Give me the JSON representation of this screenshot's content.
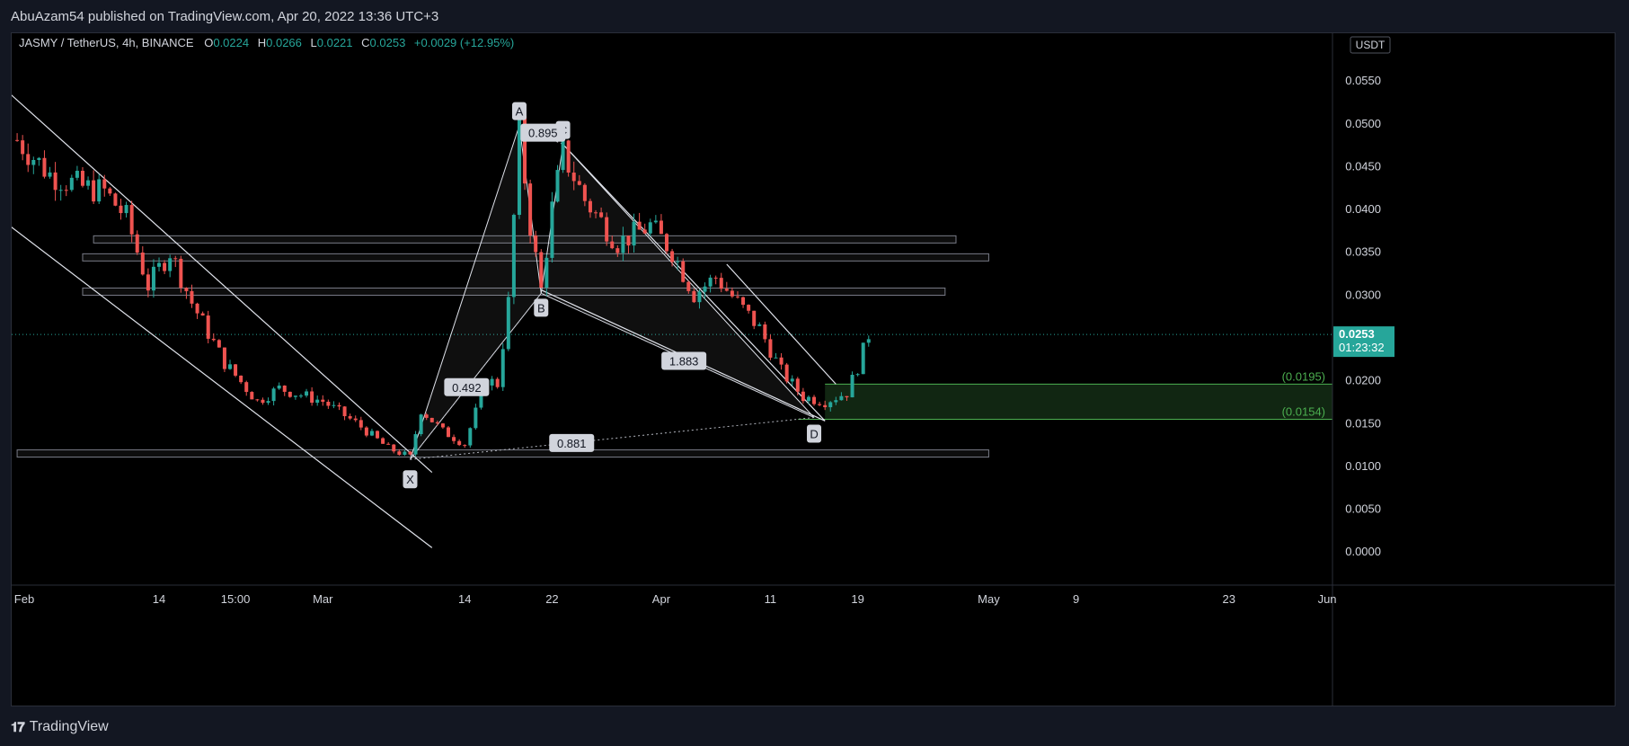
{
  "header": {
    "published": "AbuAzam54 published on TradingView.com, Apr 20, 2022 13:36 UTC+3"
  },
  "legend": {
    "symbol": "JASMY / TetherUS, 4h, BINANCE",
    "open_label": "O",
    "open": "0.0224",
    "high_label": "H",
    "high": "0.0266",
    "low_label": "L",
    "low": "0.0221",
    "close_label": "C",
    "close": "0.0253",
    "change": "+0.0029 (+12.95%)"
  },
  "currency_badge": "USDT",
  "last_price": {
    "value": "0.0253",
    "countdown": "01:23:32"
  },
  "footer": {
    "brand": "TradingView"
  },
  "colors": {
    "up": "#26a69a",
    "down": "#ef5350",
    "zone": "#4caf50",
    "line": "#e0e3eb",
    "price_badge": "#26a69a"
  },
  "chart_data": {
    "type": "candlestick",
    "title": "JASMY / TetherUS, 4h, BINANCE",
    "x_ticks": [
      "Feb",
      "14",
      "15:00",
      "Mar",
      "14",
      "22",
      "Apr",
      "11",
      "19",
      "May",
      "9",
      "23",
      "Jun"
    ],
    "y_ticks": [
      "0.0550",
      "0.0500",
      "0.0450",
      "0.0400",
      "0.0350",
      "0.0300",
      "0.0250",
      "0.0200",
      "0.0150",
      "0.0100",
      "0.0050",
      "0.0000"
    ],
    "ylim": [
      -0.0025,
      0.059
    ],
    "last_price": 0.0253,
    "harmonic_pattern": {
      "points": [
        {
          "label": "X",
          "date": "2022-03-09",
          "price": 0.0107
        },
        {
          "label": "A",
          "date": "2022-03-19",
          "price": 0.0497
        },
        {
          "label": "B",
          "date": "2022-03-21",
          "price": 0.0301
        },
        {
          "label": "C",
          "date": "2022-03-23",
          "price": 0.0475
        },
        {
          "label": "D",
          "date": "2022-04-15",
          "price": 0.0156
        }
      ],
      "ratios": [
        "0.492",
        "0.895",
        "1.883",
        "0.881"
      ]
    },
    "target_zone": {
      "upper": 0.0195,
      "lower": 0.0154,
      "upper_label": "(0.0195)",
      "lower_label": "(0.0154)"
    },
    "horizontal_bands": [
      {
        "from": "2022-02-08",
        "to": "2022-04-28",
        "price": 0.0364
      },
      {
        "from": "2022-02-07",
        "to": "2022-05-01",
        "price": 0.0343
      },
      {
        "from": "2022-02-07",
        "to": "2022-04-27",
        "price": 0.0303
      },
      {
        "from": "2022-02-01",
        "to": "2022-05-01",
        "price": 0.0114
      }
    ],
    "price_series": [
      {
        "date": "2022-02-01",
        "price": 0.048
      },
      {
        "date": "2022-02-04",
        "price": 0.044
      },
      {
        "date": "2022-02-07",
        "price": 0.0425
      },
      {
        "date": "2022-02-09",
        "price": 0.042
      },
      {
        "date": "2022-02-11",
        "price": 0.039
      },
      {
        "date": "2022-02-13",
        "price": 0.031
      },
      {
        "date": "2022-02-15",
        "price": 0.035
      },
      {
        "date": "2022-02-17",
        "price": 0.029
      },
      {
        "date": "2022-02-20",
        "price": 0.022
      },
      {
        "date": "2022-02-23",
        "price": 0.0175
      },
      {
        "date": "2022-02-25",
        "price": 0.019
      },
      {
        "date": "2022-03-01",
        "price": 0.0175
      },
      {
        "date": "2022-03-04",
        "price": 0.015
      },
      {
        "date": "2022-03-07",
        "price": 0.012
      },
      {
        "date": "2022-03-09",
        "price": 0.011
      },
      {
        "date": "2022-03-10",
        "price": 0.0165
      },
      {
        "date": "2022-03-12",
        "price": 0.014
      },
      {
        "date": "2022-03-14",
        "price": 0.0125
      },
      {
        "date": "2022-03-16",
        "price": 0.02
      },
      {
        "date": "2022-03-17",
        "price": 0.0195
      },
      {
        "date": "2022-03-18",
        "price": 0.029
      },
      {
        "date": "2022-03-19",
        "price": 0.049
      },
      {
        "date": "2022-03-20",
        "price": 0.038
      },
      {
        "date": "2022-03-21",
        "price": 0.0305
      },
      {
        "date": "2022-03-22",
        "price": 0.04
      },
      {
        "date": "2022-03-23",
        "price": 0.0465
      },
      {
        "date": "2022-03-25",
        "price": 0.041
      },
      {
        "date": "2022-03-28",
        "price": 0.036
      },
      {
        "date": "2022-03-31",
        "price": 0.038
      },
      {
        "date": "2022-04-02",
        "price": 0.035
      },
      {
        "date": "2022-04-04",
        "price": 0.03
      },
      {
        "date": "2022-04-06",
        "price": 0.032
      },
      {
        "date": "2022-04-08",
        "price": 0.029
      },
      {
        "date": "2022-04-10",
        "price": 0.026
      },
      {
        "date": "2022-04-12",
        "price": 0.021
      },
      {
        "date": "2022-04-14",
        "price": 0.018
      },
      {
        "date": "2022-04-16",
        "price": 0.0175
      },
      {
        "date": "2022-04-18",
        "price": 0.0185
      },
      {
        "date": "2022-04-19",
        "price": 0.0215
      },
      {
        "date": "2022-04-20",
        "price": 0.0253
      }
    ]
  }
}
